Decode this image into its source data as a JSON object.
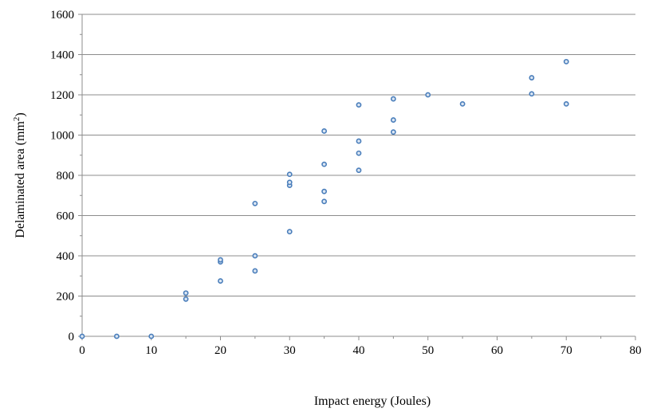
{
  "chart_data": {
    "type": "scatter",
    "xlabel": "Impact energy (Joules)",
    "ylabel_main": "Delaminated area (mm",
    "ylabel_sup": "2",
    "ylabel_close": ")",
    "xlim": [
      0,
      80
    ],
    "ylim": [
      0,
      1600
    ],
    "x_ticks": [
      0,
      10,
      20,
      30,
      40,
      50,
      60,
      70,
      80
    ],
    "y_ticks": [
      0,
      200,
      400,
      600,
      800,
      1000,
      1200,
      1400,
      1600
    ],
    "grid": "horizontal",
    "legend": "none",
    "marker_color": "#4a7ebb",
    "points": [
      {
        "x": 0,
        "y": 0
      },
      {
        "x": 5,
        "y": 0
      },
      {
        "x": 10,
        "y": 0
      },
      {
        "x": 15,
        "y": 185
      },
      {
        "x": 15,
        "y": 215
      },
      {
        "x": 20,
        "y": 275
      },
      {
        "x": 20,
        "y": 370
      },
      {
        "x": 20,
        "y": 380
      },
      {
        "x": 25,
        "y": 325
      },
      {
        "x": 25,
        "y": 400
      },
      {
        "x": 25,
        "y": 660
      },
      {
        "x": 30,
        "y": 520
      },
      {
        "x": 30,
        "y": 750
      },
      {
        "x": 30,
        "y": 765
      },
      {
        "x": 30,
        "y": 805
      },
      {
        "x": 35,
        "y": 670
      },
      {
        "x": 35,
        "y": 720
      },
      {
        "x": 35,
        "y": 855
      },
      {
        "x": 35,
        "y": 1020
      },
      {
        "x": 40,
        "y": 825
      },
      {
        "x": 40,
        "y": 910
      },
      {
        "x": 40,
        "y": 970
      },
      {
        "x": 40,
        "y": 1150
      },
      {
        "x": 45,
        "y": 1015
      },
      {
        "x": 45,
        "y": 1075
      },
      {
        "x": 45,
        "y": 1180
      },
      {
        "x": 50,
        "y": 1200
      },
      {
        "x": 55,
        "y": 1155
      },
      {
        "x": 65,
        "y": 1205
      },
      {
        "x": 65,
        "y": 1285
      },
      {
        "x": 70,
        "y": 1155
      },
      {
        "x": 70,
        "y": 1365
      }
    ]
  }
}
